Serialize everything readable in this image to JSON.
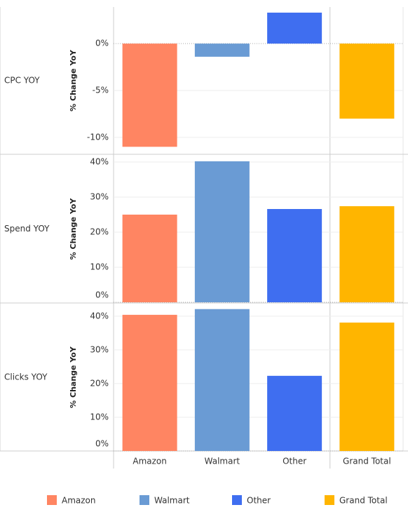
{
  "categories": [
    "Amazon",
    "Walmart",
    "Other",
    "Grand Total"
  ],
  "colors": [
    "#ff8562",
    "#6a9bd4",
    "#3f6ef0",
    "#ffb500"
  ],
  "chart_data": [
    {
      "type": "bar",
      "row_label": "CPC YOY",
      "y_label": "% Change YoY",
      "values": [
        -11.0,
        -1.4,
        3.3,
        -8.0
      ],
      "ylim": [
        -11.8,
        3.9
      ],
      "yticks": [
        {
          "value": -10,
          "label": "-10%"
        },
        {
          "value": -5,
          "label": "-5%"
        },
        {
          "value": 0,
          "label": "0%"
        }
      ]
    },
    {
      "type": "bar",
      "row_label": "Spend YOY",
      "y_label": "% Change YoY",
      "values": [
        25.0,
        40.2,
        26.6,
        27.4
      ],
      "ylim": [
        0,
        41.8
      ],
      "yticks": [
        {
          "value": 0,
          "label": "0%"
        },
        {
          "value": 10,
          "label": "10%"
        },
        {
          "value": 20,
          "label": "20%"
        },
        {
          "value": 30,
          "label": "30%"
        },
        {
          "value": 40,
          "label": "40%"
        }
      ]
    },
    {
      "type": "bar",
      "row_label": "Clicks YOY",
      "y_label": "% Change YoY",
      "values": [
        40.4,
        42.1,
        22.3,
        38.1
      ],
      "ylim": [
        0,
        43.7
      ],
      "yticks": [
        {
          "value": 0,
          "label": "0%"
        },
        {
          "value": 10,
          "label": "10%"
        },
        {
          "value": 20,
          "label": "20%"
        },
        {
          "value": 30,
          "label": "30%"
        },
        {
          "value": 40,
          "label": "40%"
        }
      ]
    }
  ]
}
